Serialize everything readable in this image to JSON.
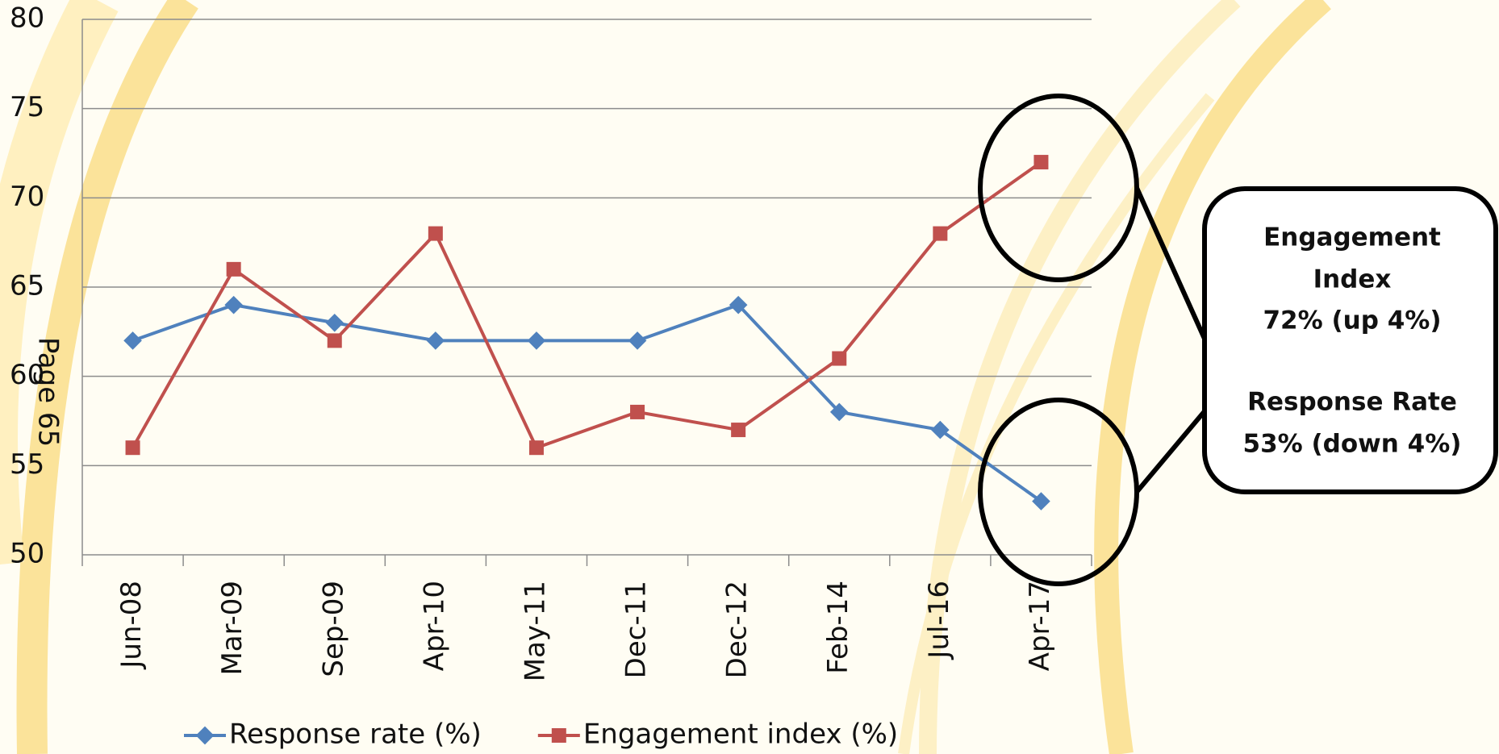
{
  "chart_data": {
    "type": "line",
    "categories": [
      "Jun-08",
      "Mar-09",
      "Sep-09",
      "Apr-10",
      "May-11",
      "Dec-11",
      "Dec-12",
      "Feb-14",
      "Jul-16",
      "Apr-17"
    ],
    "series": [
      {
        "name": "Response rate (%)",
        "color": "#4f81bd",
        "values": [
          62,
          64,
          63,
          62,
          62,
          62,
          64,
          58,
          57,
          53
        ]
      },
      {
        "name": "Engagement index (%)",
        "color": "#c0504d",
        "values": [
          56,
          66,
          62,
          68,
          56,
          58,
          57,
          61,
          68,
          72
        ]
      }
    ],
    "ylim": [
      50,
      80
    ],
    "yticks": [
      50,
      55,
      60,
      65,
      70,
      75,
      80
    ],
    "grid": true,
    "legend": "bottom",
    "page_label": "Page 65",
    "annotation": [
      "Engagement",
      "Index",
      "72% (up 4%)",
      "Response Rate",
      "53% (down 4%)"
    ]
  }
}
